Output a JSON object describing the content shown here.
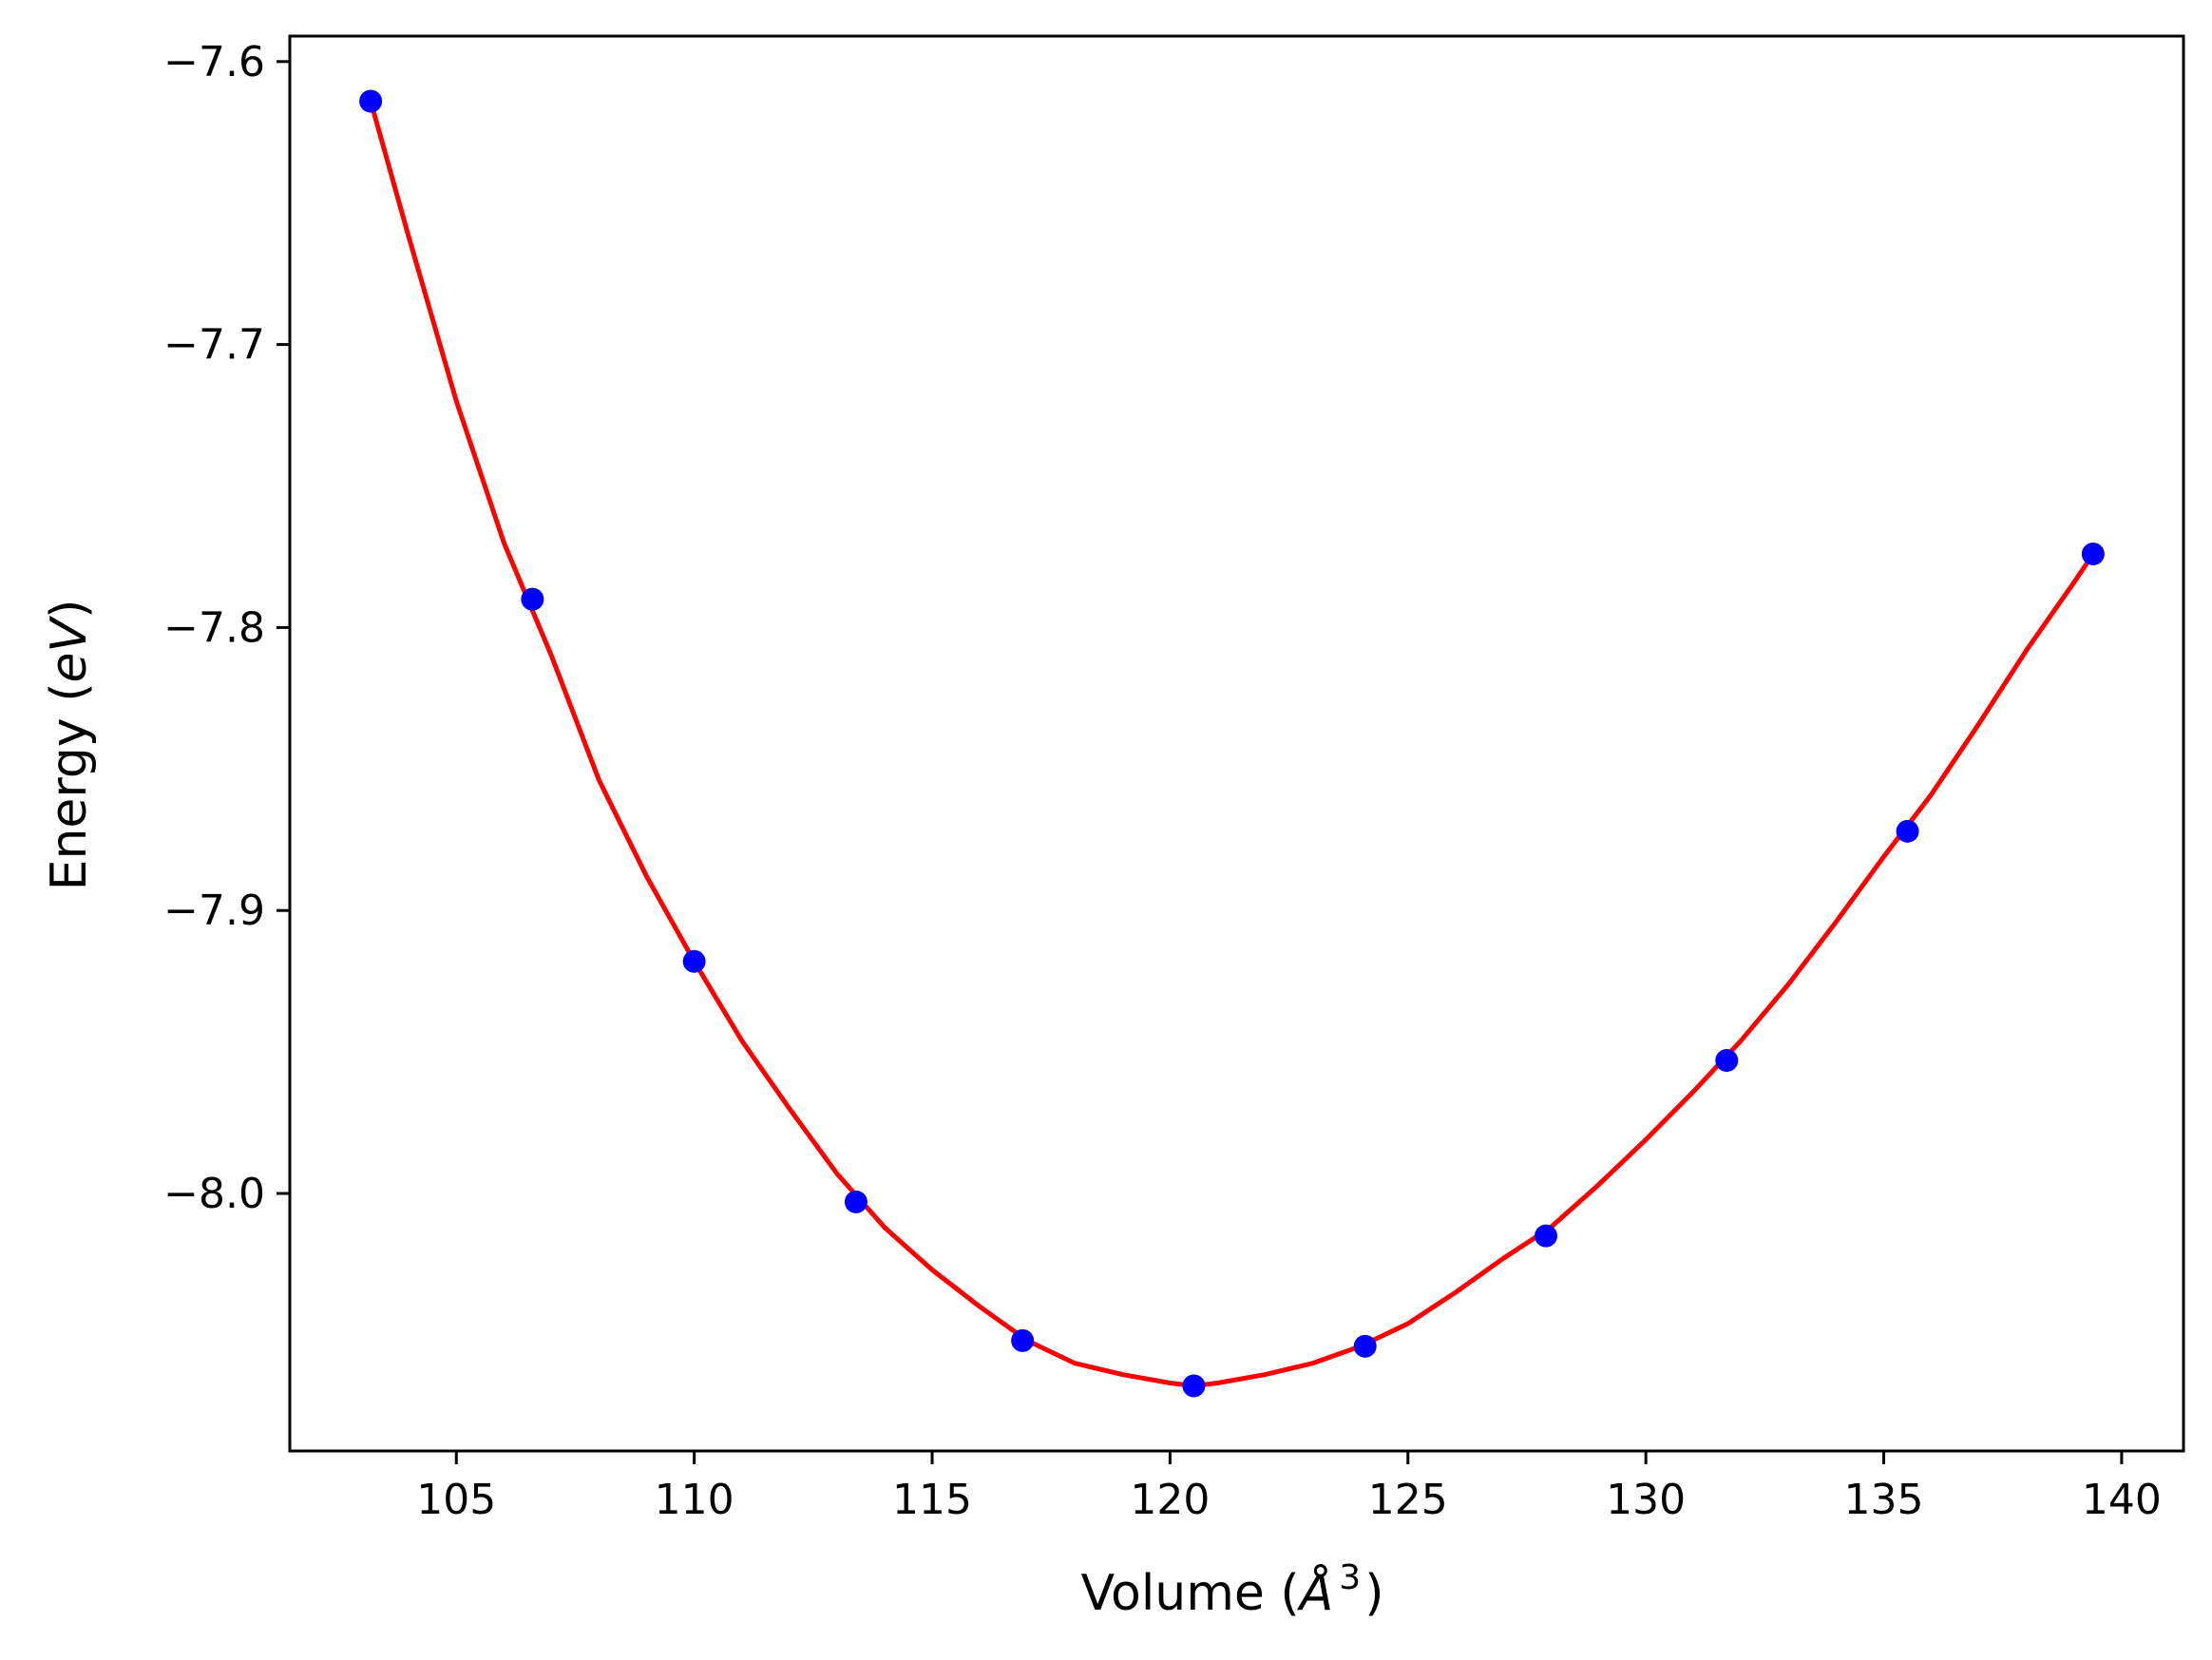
{
  "chart_data": {
    "type": "scatter",
    "xlabel_main": "Volume (",
    "xlabel_unit": "Å",
    "xlabel_exp": "3",
    "xlabel_close": ")",
    "ylabel_main": "Energy (",
    "ylabel_unit": "eV",
    "ylabel_close": ")",
    "xlim": [
      101.5,
      141.3
    ],
    "ylim": [
      -8.091,
      -7.591
    ],
    "xticks": [
      105,
      110,
      115,
      120,
      125,
      130,
      135,
      140
    ],
    "xtick_labels": [
      "105",
      "110",
      "115",
      "120",
      "125",
      "130",
      "135",
      "140"
    ],
    "yticks": [
      -7.6,
      -7.7,
      -7.8,
      -7.9,
      -8.0
    ],
    "ytick_labels": [
      "−7.6",
      "−7.7",
      "−7.8",
      "−7.9",
      "−8.0"
    ],
    "grid": false,
    "series": [
      {
        "kind": "points",
        "color": "#0000ff",
        "x": [
          103.2,
          106.6,
          110.0,
          113.4,
          116.9,
          120.5,
          124.1,
          127.9,
          131.7,
          135.5,
          139.4
        ],
        "y": [
          -7.614,
          -7.79,
          -7.918,
          -8.003,
          -8.052,
          -8.068,
          -8.054,
          -8.015,
          -7.953,
          -7.872,
          -7.774
        ]
      },
      {
        "kind": "fit-line",
        "color": "#ff0000",
        "x": [
          103.2,
          104.0,
          105.0,
          106.0,
          107.0,
          108.0,
          109.0,
          110.0,
          111.0,
          112.0,
          113.0,
          114.0,
          115.0,
          116.0,
          117.0,
          118.0,
          119.0,
          120.0,
          120.5,
          121.0,
          122.0,
          123.0,
          124.0,
          125.0,
          126.0,
          127.0,
          128.0,
          129.0,
          130.0,
          131.0,
          132.0,
          133.0,
          134.0,
          135.0,
          136.0,
          137.0,
          138.0,
          139.0,
          139.4
        ],
        "y": [
          -7.614,
          -7.662,
          -7.72,
          -7.77,
          -7.81,
          -7.854,
          -7.888,
          -7.918,
          -7.946,
          -7.97,
          -7.993,
          -8.012,
          -8.027,
          -8.04,
          -8.052,
          -8.06,
          -8.064,
          -8.067,
          -8.068,
          -8.067,
          -8.064,
          -8.06,
          -8.054,
          -8.046,
          -8.035,
          -8.023,
          -8.012,
          -7.997,
          -7.981,
          -7.964,
          -7.946,
          -7.926,
          -7.904,
          -7.881,
          -7.859,
          -7.834,
          -7.808,
          -7.784,
          -7.774
        ]
      }
    ]
  }
}
